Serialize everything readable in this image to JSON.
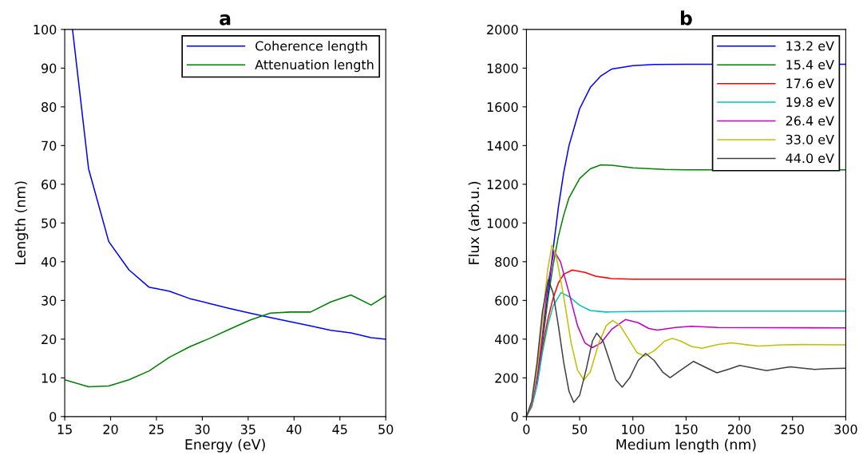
{
  "chart_data": [
    {
      "type": "line",
      "title": "a",
      "xlabel": "Energy (eV)",
      "ylabel": "Length (nm)",
      "xlim": [
        15,
        50
      ],
      "ylim": [
        0,
        100
      ],
      "xticks": [
        15,
        20,
        25,
        30,
        35,
        40,
        45,
        50
      ],
      "yticks": [
        0,
        10,
        20,
        30,
        40,
        50,
        60,
        70,
        80,
        90,
        100
      ],
      "grid": false,
      "legend": "top right",
      "series": [
        {
          "name": "Coherence length",
          "color": "#0000ff",
          "x": [
            15.85,
            17.6,
            19.8,
            22.0,
            24.2,
            26.4,
            28.6,
            30.8,
            33.0,
            35.2,
            37.4,
            39.6,
            41.8,
            44.0,
            46.2,
            48.4,
            50
          ],
          "values": [
            100,
            64.0,
            45.2,
            37.9,
            33.4,
            32.4,
            30.5,
            29.2,
            27.9,
            26.7,
            25.6,
            24.5,
            23.4,
            22.3,
            21.6,
            20.4,
            20.0
          ]
        },
        {
          "name": "Attenuation length",
          "color": "#008000",
          "x": [
            15,
            17.6,
            19.8,
            22.0,
            24.2,
            26.4,
            28.6,
            30.8,
            33.0,
            35.2,
            37.4,
            39.6,
            41.8,
            44.0,
            46.2,
            48.4,
            50
          ],
          "values": [
            9.5,
            7.7,
            7.9,
            9.5,
            11.8,
            15.3,
            18.0,
            20.2,
            22.6,
            24.9,
            26.7,
            27.0,
            27.0,
            29.6,
            31.4,
            28.8,
            31.2
          ]
        }
      ]
    },
    {
      "type": "line",
      "title": "b",
      "xlabel": "Medium length (nm)",
      "ylabel": "Flux (arb.u.)",
      "xlim": [
        0,
        300
      ],
      "ylim": [
        0,
        2000
      ],
      "xticks": [
        0,
        50,
        100,
        150,
        200,
        250,
        300
      ],
      "yticks": [
        0,
        200,
        400,
        600,
        800,
        1000,
        1200,
        1400,
        1600,
        1800,
        2000
      ],
      "grid": false,
      "legend": "top right",
      "series": [
        {
          "name": "13.2 eV",
          "color": "#0000ff",
          "x": [
            15,
            20,
            25,
            30,
            35,
            40,
            50,
            60,
            70,
            80,
            100,
            120,
            150,
            300
          ],
          "values": [
            400,
            620,
            860,
            1080,
            1260,
            1400,
            1590,
            1700,
            1760,
            1795,
            1813,
            1819,
            1820,
            1820
          ]
        },
        {
          "name": "15.4 eV",
          "color": "#008000",
          "x": [
            10,
            15,
            20,
            25,
            30,
            35,
            40,
            50,
            60,
            70,
            80,
            100,
            130,
            150,
            300
          ],
          "values": [
            180,
            380,
            600,
            780,
            930,
            1040,
            1130,
            1230,
            1280,
            1300,
            1298,
            1285,
            1277,
            1275,
            1275
          ]
        },
        {
          "name": "17.6 eV",
          "color": "#ff0000",
          "x": [
            10,
            15,
            20,
            25,
            30,
            35,
            43,
            55,
            65,
            80,
            100,
            300
          ],
          "values": [
            170,
            350,
            500,
            610,
            690,
            735,
            757,
            745,
            725,
            713,
            710,
            710
          ]
        },
        {
          "name": "19.8 eV",
          "color": "#00c0c0",
          "x": [
            0,
            5,
            10,
            15,
            20,
            25,
            32.5,
            40,
            50,
            60,
            75,
            100,
            150,
            300
          ],
          "values": [
            0,
            50,
            160,
            330,
            470,
            570,
            640,
            620,
            575,
            548,
            540,
            543,
            545,
            545
          ]
        },
        {
          "name": "26.4 eV",
          "color": "#c000c0",
          "x": [
            0,
            5,
            10,
            15,
            20,
            26,
            32,
            40,
            48,
            55,
            62,
            70,
            80,
            93,
            105,
            115,
            123,
            140,
            155,
            180,
            300
          ],
          "values": [
            0,
            60,
            200,
            420,
            680,
            855,
            800,
            640,
            470,
            380,
            356,
            380,
            450,
            501,
            485,
            455,
            447,
            460,
            466,
            460,
            458
          ]
        },
        {
          "name": "33.0 eV",
          "color": "#c0c000",
          "x": [
            0,
            5,
            10,
            15,
            20,
            24,
            28,
            35,
            42,
            48,
            54,
            60,
            68,
            75,
            81,
            88,
            96,
            104,
            111,
            120,
            130,
            137,
            145,
            155,
            165,
            180,
            193,
            205,
            218,
            240,
            260,
            300
          ],
          "values": [
            0,
            70,
            240,
            500,
            760,
            885,
            830,
            620,
            380,
            240,
            189,
            230,
            380,
            470,
            497,
            470,
            400,
            330,
            312,
            340,
            390,
            404,
            390,
            362,
            353,
            372,
            381,
            372,
            364,
            370,
            372,
            370
          ]
        },
        {
          "name": "44.0 eV",
          "color": "#404040",
          "x": [
            0,
            5,
            10,
            15,
            20.5,
            25,
            30,
            35,
            40,
            44.5,
            50,
            56,
            62,
            66,
            72,
            78,
            84,
            90,
            97,
            105,
            112,
            120,
            128,
            135,
            145,
            157,
            168,
            179,
            190,
            200.5,
            212,
            225.5,
            237,
            248,
            260,
            270.5,
            285,
            300
          ],
          "values": [
            0,
            80,
            280,
            540,
            707,
            640,
            470,
            280,
            130,
            73,
            110,
            240,
            390,
            431,
            390,
            290,
            190,
            152,
            200,
            290,
            326,
            290,
            230,
            201,
            240,
            285,
            255,
            226,
            245,
            264,
            252,
            237,
            248,
            257,
            250,
            244,
            248,
            250
          ]
        }
      ]
    }
  ]
}
